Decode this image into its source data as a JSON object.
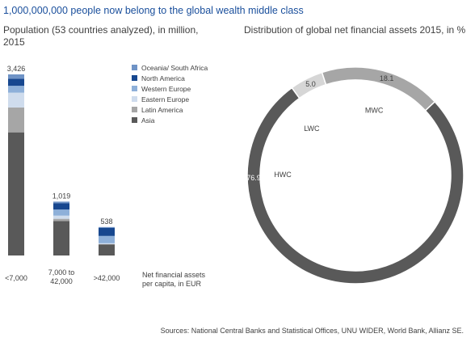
{
  "title": "1,000,000,000 people now belong to the global wealth middle class",
  "bar_chart_title": [
    "Population (53 countries analyzed), in million,",
    "2015"
  ],
  "donut_chart_title": "Distribution of global net financial assets 2015, in %",
  "source": "Sources: National Central Banks and Statistical Offices, UNU WIDER, World Bank, Allianz SE.",
  "chart_data": [
    {
      "type": "bar",
      "stacked": true,
      "title": "Population (53 countries analyzed), in million, 2015",
      "categories": [
        [
          "<7,000"
        ],
        [
          "7,000 to",
          "42,000"
        ],
        [
          ">42,000"
        ]
      ],
      "xlabel": [
        "Net financial assets",
        "per capita, in EUR"
      ],
      "totals": [
        "3,426",
        "1,019",
        "538"
      ],
      "total_values": [
        3426,
        1019,
        538
      ],
      "series": [
        {
          "name": "Asia",
          "color": "#595959",
          "values": [
            2330,
            651,
            207
          ]
        },
        {
          "name": "Latin America",
          "color": "#a6a6a6",
          "values": [
            470,
            43,
            8
          ]
        },
        {
          "name": "Eastern Europe",
          "color": "#cfdced",
          "values": [
            280,
            60,
            17
          ]
        },
        {
          "name": "Western Europe",
          "color": "#8eb0d9",
          "values": [
            130,
            115,
            138
          ]
        },
        {
          "name": "North America",
          "color": "#17478f",
          "values": [
            133,
            122,
            150
          ]
        },
        {
          "name": "Oceania/ South Africa",
          "color": "#6f93c6",
          "values": [
            83,
            28,
            18
          ]
        }
      ],
      "legend_order": [
        "Oceania/ South Africa",
        "North America",
        "Western Europe",
        "Eastern Europe",
        "Latin America",
        "Asia"
      ]
    },
    {
      "type": "pie",
      "donut": true,
      "title": "Distribution of global net financial assets 2015, in %",
      "slices": [
        {
          "label": "LWC",
          "value": 5.0,
          "value_label": "5.0",
          "color": "#d6d6d6"
        },
        {
          "label": "MWC",
          "value": 18.1,
          "value_label": "18.1",
          "color": "#a6a6a6"
        },
        {
          "label": "HWC",
          "value": 76.9,
          "value_label": "76.9",
          "color": "#595959"
        }
      ]
    }
  ]
}
